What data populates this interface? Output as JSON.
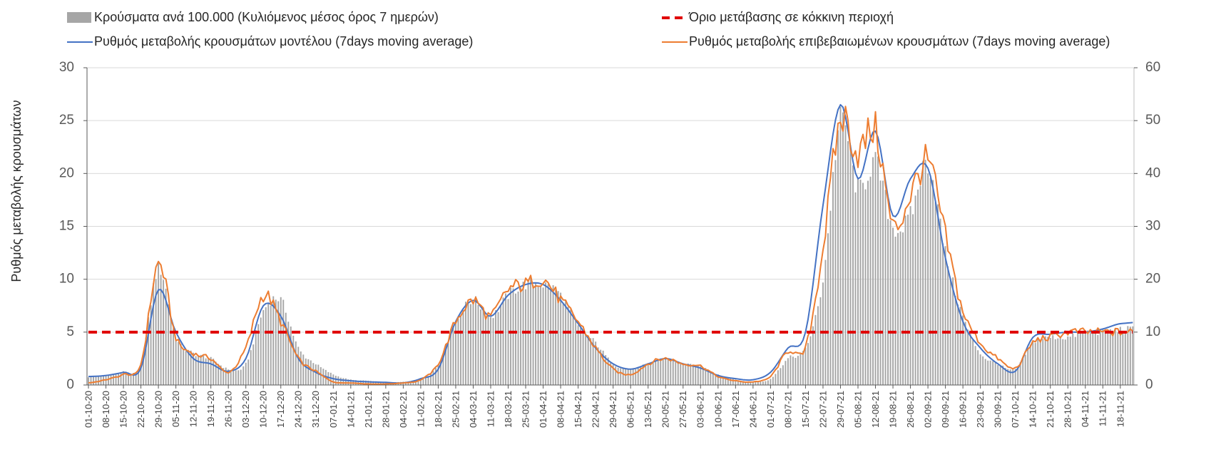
{
  "chart_data": {
    "type": "bar",
    "xlabel": "",
    "ylabel": "Ρυθμός μεταβολής κρουσμάτων",
    "ylim_left": [
      0,
      30
    ],
    "ylim_right": [
      0,
      60
    ],
    "yticks_left": [
      "0",
      "5",
      "10",
      "15",
      "20",
      "25",
      "30"
    ],
    "yticks_right": [
      "0",
      "10",
      "20",
      "30",
      "40",
      "50",
      "60"
    ],
    "grid": true,
    "legend_position": "top",
    "categories": [
      "01-10-20",
      "08-10-20",
      "15-10-20",
      "22-10-20",
      "29-10-20",
      "05-11-20",
      "12-11-20",
      "19-11-20",
      "26-11-20",
      "03-12-20",
      "10-12-20",
      "17-12-20",
      "24-12-20",
      "31-12-20",
      "07-01-21",
      "14-01-21",
      "21-01-21",
      "28-01-21",
      "04-02-21",
      "11-02-21",
      "18-02-21",
      "25-02-21",
      "04-03-21",
      "11-03-21",
      "18-03-21",
      "25-03-21",
      "01-04-21",
      "08-04-21",
      "15-04-21",
      "22-04-21",
      "29-04-21",
      "06-05-21",
      "13-05-21",
      "20-05-21",
      "27-05-21",
      "03-06-21",
      "10-06-21",
      "17-06-21",
      "24-06-21",
      "01-07-21",
      "08-07-21",
      "15-07-21",
      "22-07-21",
      "29-07-21",
      "05-08-21",
      "12-08-21",
      "19-08-21",
      "26-08-21",
      "02-09-21",
      "09-09-21",
      "16-09-21",
      "23-09-21",
      "30-09-21",
      "07-10-21",
      "14-10-21",
      "21-10-21",
      "28-10-21",
      "04-11-21",
      "11-11-21",
      "18-11-21"
    ],
    "weeks_after_last_category": 0.7,
    "series": [
      {
        "name": "Κρούσματα ανά 100.000 (Κυλιόμενος μέσος όρος 7 ημερών)",
        "type": "bar",
        "axis": "right",
        "color": "#a6a6a6",
        "values": [
          1.5,
          1.8,
          2.5,
          4,
          22,
          9,
          6,
          5,
          3,
          4,
          14,
          16,
          7,
          4,
          2,
          1,
          0.8,
          0.5,
          0.6,
          1,
          4,
          12,
          16,
          13,
          17,
          19,
          19,
          17,
          11,
          8,
          4,
          3,
          4,
          5,
          4,
          3.5,
          2,
          1,
          0.6,
          1.2,
          5,
          7,
          20,
          50,
          37,
          42,
          30,
          32,
          42,
          25,
          13,
          6,
          4,
          3,
          8,
          9,
          9,
          10,
          10,
          10.5
        ]
      },
      {
        "name": "Ρυθμός μεταβολής κρουσμάτων μοντέλου (7days moving average)",
        "type": "line",
        "axis": "left",
        "color": "#4472c4",
        "values": [
          0.8,
          0.9,
          1.2,
          1.6,
          9,
          5,
          2.5,
          2,
          1.3,
          2.5,
          7.5,
          6.5,
          2.5,
          1.2,
          0.6,
          0.4,
          0.3,
          0.25,
          0.2,
          0.6,
          1.5,
          6,
          8,
          6.5,
          8.5,
          9.5,
          9.5,
          8,
          5.8,
          3.5,
          2,
          1.5,
          2,
          2.5,
          2,
          1.6,
          0.9,
          0.6,
          0.5,
          1.2,
          3.5,
          5,
          17,
          26.5,
          19.5,
          24,
          16,
          19.5,
          20.5,
          12,
          6,
          3.5,
          2,
          1.3,
          4.5,
          4.8,
          5,
          5,
          5.3,
          5.8
        ]
      },
      {
        "name": "Ρυθμός μεταβολής επιβεβαιωμένων κρουσμάτων (7days moving average)",
        "type": "line",
        "axis": "left",
        "color": "#ed7d31",
        "values": [
          0.2,
          0.5,
          1,
          2,
          11.5,
          4.5,
          3,
          2.5,
          1.2,
          3.5,
          8.5,
          6,
          2.5,
          1.3,
          0.3,
          0.2,
          0.1,
          0.1,
          0.2,
          0.5,
          2,
          6,
          8,
          6.5,
          9,
          9.5,
          10,
          8,
          6,
          3.5,
          1.5,
          1,
          2,
          2.5,
          2,
          1.8,
          0.8,
          0.4,
          0.3,
          0.8,
          3.2,
          3.5,
          13,
          25,
          22,
          24,
          15,
          18,
          21,
          14,
          7,
          4,
          2.5,
          1.6,
          4,
          4.5,
          5,
          5,
          5,
          5
        ]
      },
      {
        "name": "Όριο μετάβασης σε κόκκινη περιοχή",
        "type": "line",
        "axis": "left",
        "color": "#e00000",
        "style": "dashed",
        "constant_value": 5
      }
    ]
  }
}
